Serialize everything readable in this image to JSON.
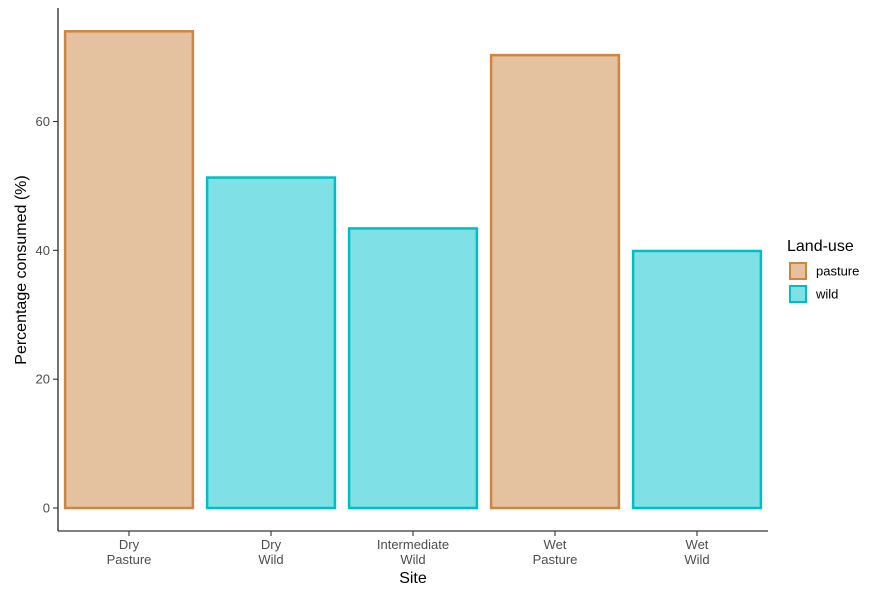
{
  "chart_data": {
    "type": "bar",
    "categories": [
      {
        "lines": [
          "Dry",
          "Pasture"
        ],
        "land_use": "pasture",
        "value": 74.0
      },
      {
        "lines": [
          "Dry",
          "Wild"
        ],
        "land_use": "wild",
        "value": 51.3
      },
      {
        "lines": [
          "Intermediate",
          "Wild"
        ],
        "land_use": "wild",
        "value": 43.4
      },
      {
        "lines": [
          "Wet",
          "Pasture"
        ],
        "land_use": "pasture",
        "value": 70.3
      },
      {
        "lines": [
          "Wet",
          "Wild"
        ],
        "land_use": "wild",
        "value": 39.9
      }
    ],
    "xlabel": "Site",
    "ylabel": "Percentage consumed (%)",
    "ylim": [
      0,
      77
    ],
    "yticks": [
      0,
      20,
      40,
      60
    ],
    "grid": false,
    "legend": {
      "title": "Land-use",
      "placement": "right",
      "entries": [
        {
          "label": "pasture",
          "fill": "#e5c29f",
          "stroke": "#cd853f"
        },
        {
          "label": "wild",
          "fill": "#7fe1e6",
          "stroke": "#00bfc4"
        }
      ]
    }
  }
}
